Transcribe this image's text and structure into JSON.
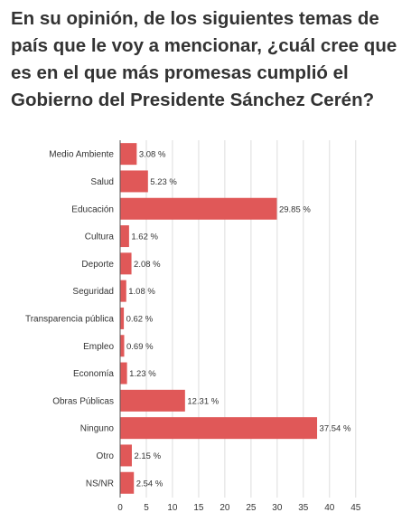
{
  "chart_data": {
    "type": "bar",
    "orientation": "horizontal",
    "title": "En su opinión, de los siguientes temas de país que le voy a mencionar, ¿cuál cree que es en el que más promesas cumplió el Gobierno del Presidente Sánchez Cerén?",
    "categories": [
      "Medio Ambiente",
      "Salud",
      "Educación",
      "Cultura",
      "Deporte",
      "Seguridad",
      "Transparencia pública",
      "Empleo",
      "Economía",
      "Obras Públicas",
      "Ninguno",
      "Otro",
      "NS/NR"
    ],
    "values": [
      3.08,
      5.23,
      29.85,
      1.62,
      2.08,
      1.08,
      0.62,
      0.69,
      1.23,
      12.31,
      37.54,
      2.15,
      2.54
    ],
    "value_labels": [
      "3.08 %",
      "5.23 %",
      "29.85 %",
      "1.62 %",
      "2.08 %",
      "1.08 %",
      "0.62 %",
      "0.69 %",
      "1.23 %",
      "12.31 %",
      "37.54 %",
      "2.15 %",
      "2.54 %"
    ],
    "xlim": [
      0,
      45
    ],
    "xticks": [
      0,
      5,
      10,
      15,
      20,
      25,
      30,
      35,
      40,
      45
    ],
    "grid": true,
    "bar_color": "#e05858"
  }
}
